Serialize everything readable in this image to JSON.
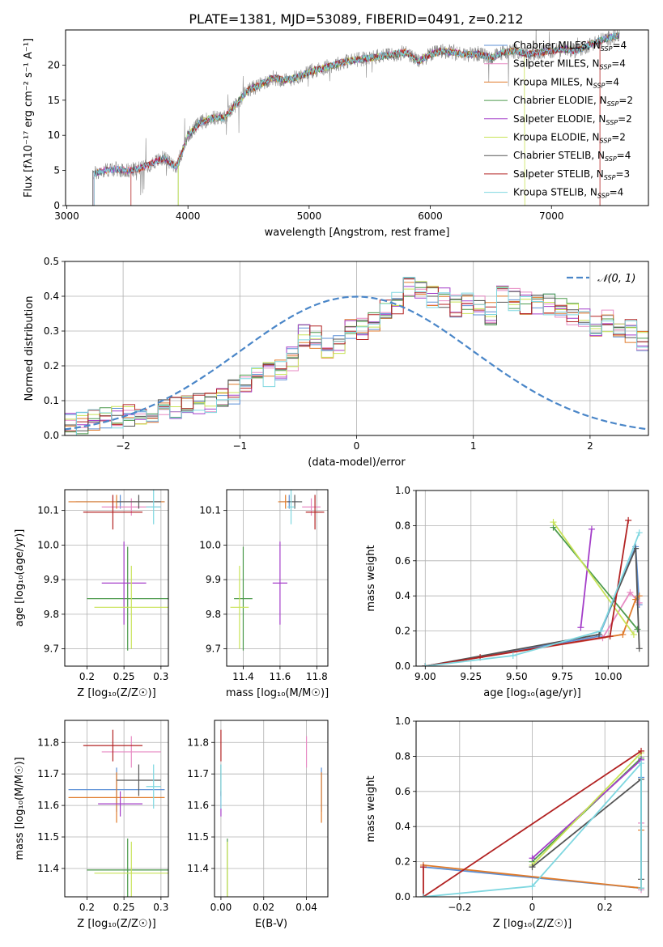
{
  "title": "PLATE=1381, MJD=53089, FIBERID=0491, z=0.212",
  "colors": {
    "chabrier_miles": "#5b8fd6",
    "salpeter_miles": "#e78ac3",
    "kroupa_miles": "#e07b2b",
    "chabrier_elodie": "#4c9a4c",
    "salpeter_elodie": "#a43ec9",
    "kroupa_elodie": "#c8e356",
    "chabrier_stelib": "#555555",
    "salpeter_stelib": "#b22222",
    "kroupa_stelib": "#7fd7e0",
    "gaussian": "#4a86c8",
    "grid": "#b0b0b0"
  },
  "chart_data": [
    {
      "id": "spectrum",
      "type": "line",
      "xlabel": "wavelength [Angstrom, rest frame]",
      "ylabel": "Flux [fλ10⁻¹⁷ erg cm⁻² s⁻¹ A⁻¹]",
      "xlim": [
        2990,
        7800
      ],
      "ylim": [
        0,
        25
      ],
      "xticks": [
        3000,
        4000,
        5000,
        6000,
        7000
      ],
      "yticks": [
        0,
        5,
        10,
        15,
        20
      ],
      "grid": false,
      "legend_position": "top-right",
      "legend": [
        {
          "label": "Chabrier MILES, N",
          "sub": "SSP",
          "suffix": "=4",
          "color_key": "chabrier_miles"
        },
        {
          "label": "Salpeter MILES, N",
          "sub": "SSP",
          "suffix": "=4",
          "color_key": "salpeter_miles"
        },
        {
          "label": "Kroupa MILES, N",
          "sub": "SSP",
          "suffix": "=4",
          "color_key": "kroupa_miles"
        },
        {
          "label": "Chabrier ELODIE, N",
          "sub": "SSP",
          "suffix": "=2",
          "color_key": "chabrier_elodie"
        },
        {
          "label": "Salpeter ELODIE, N",
          "sub": "SSP",
          "suffix": "=2",
          "color_key": "salpeter_elodie"
        },
        {
          "label": "Kroupa ELODIE, N",
          "sub": "SSP",
          "suffix": "=2",
          "color_key": "kroupa_elodie"
        },
        {
          "label": "Chabrier STELIB, N",
          "sub": "SSP",
          "suffix": "=4",
          "color_key": "chabrier_stelib"
        },
        {
          "label": "Salpeter STELIB, N",
          "sub": "SSP",
          "suffix": "=3",
          "color_key": "salpeter_stelib"
        },
        {
          "label": "Kroupa STELIB, N",
          "sub": "SSP",
          "suffix": "=4",
          "color_key": "kroupa_stelib"
        }
      ],
      "continuum": {
        "x": [
          3220,
          3300,
          3400,
          3500,
          3600,
          3700,
          3800,
          3900,
          3950,
          4000,
          4100,
          4200,
          4300,
          4400,
          4500,
          4600,
          4700,
          4800,
          4900,
          5000,
          5100,
          5200,
          5300,
          5400,
          5500,
          5600,
          5700,
          5800,
          5900,
          6000,
          6100,
          6200,
          6300,
          6400,
          6500,
          6600,
          6700,
          6800,
          6900,
          7000,
          7100,
          7200,
          7300,
          7400,
          7550
        ],
        "y": [
          4.5,
          5.0,
          5.2,
          5.0,
          5.2,
          6.0,
          6.8,
          5.5,
          7.5,
          10.0,
          11.8,
          12.5,
          12.5,
          14.5,
          16.5,
          17.2,
          18.2,
          17.8,
          18.3,
          19.0,
          19.5,
          20.0,
          20.5,
          20.8,
          21.0,
          21.3,
          21.5,
          21.8,
          20.5,
          21.5,
          22.0,
          21.8,
          21.5,
          21.6,
          21.0,
          21.8,
          22.0,
          21.5,
          21.8,
          22.0,
          22.3,
          22.0,
          22.8,
          23.5,
          24.2
        ]
      },
      "model_onsets": [
        {
          "color_key": "chabrier_stelib",
          "x_start": 3215
        },
        {
          "color_key": "salpeter_stelib",
          "x_start": 3530
        },
        {
          "color_key": "kroupa_elodie",
          "x_start": 3920
        },
        {
          "color_key": "chabrier_elodie",
          "x_start": 3920
        }
      ],
      "model_cutoffs": [
        {
          "color_key": "kroupa_elodie",
          "x_end": 6780
        },
        {
          "color_key": "salpeter_stelib",
          "x_end": 7400
        }
      ]
    },
    {
      "id": "residual_histogram",
      "type": "histogram",
      "xlabel": "(data-model)/error",
      "ylabel": "Normed distribution",
      "xlim": [
        -2.5,
        2.5
      ],
      "ylim": [
        0,
        0.5
      ],
      "xticks": [
        -2,
        -1,
        0,
        1,
        2
      ],
      "yticks": [
        0.0,
        0.1,
        0.2,
        0.3,
        0.4,
        0.5
      ],
      "grid": true,
      "legend_position": "top-right",
      "reference_label": "𝒩(0, 1)",
      "bin_start": -2.5,
      "bin_width": 0.1,
      "base_heights": [
        0.03,
        0.035,
        0.04,
        0.045,
        0.05,
        0.055,
        0.06,
        0.065,
        0.07,
        0.08,
        0.09,
        0.095,
        0.1,
        0.11,
        0.125,
        0.14,
        0.16,
        0.175,
        0.19,
        0.22,
        0.29,
        0.28,
        0.25,
        0.26,
        0.3,
        0.31,
        0.33,
        0.36,
        0.38,
        0.42,
        0.41,
        0.4,
        0.4,
        0.37,
        0.38,
        0.37,
        0.35,
        0.4,
        0.39,
        0.38,
        0.37,
        0.38,
        0.36,
        0.35,
        0.33,
        0.32,
        0.33,
        0.3,
        0.3,
        0.27,
        0.28,
        0.26,
        0.24,
        0.22,
        0.2,
        0.17,
        0.15,
        0.14,
        0.12,
        0.11,
        0.09,
        0.1,
        0.085,
        0.08,
        0.075,
        0.07,
        0.065,
        0.06,
        0.055,
        0.05,
        0.045,
        0.04,
        0.035,
        0.03,
        0.03,
        0.03,
        0.025,
        0.02,
        0.02,
        0.02
      ],
      "series_keys": [
        "chabrier_miles",
        "salpeter_miles",
        "kroupa_miles",
        "chabrier_elodie",
        "salpeter_elodie",
        "kroupa_elodie",
        "chabrier_stelib",
        "salpeter_stelib",
        "kroupa_stelib"
      ]
    },
    {
      "id": "age_vs_Z",
      "type": "errorbar",
      "xlabel": "Z [log₁₀(Z/Z☉)]",
      "ylabel": "age  [log₁₀(age/yr)]",
      "xlim": [
        0.17,
        0.31
      ],
      "ylim": [
        9.65,
        10.16
      ],
      "xticks": [
        0.2,
        0.25,
        0.3
      ],
      "yticks": [
        9.7,
        9.8,
        9.9,
        10.0,
        10.1
      ],
      "grid": true,
      "points": [
        {
          "color_key": "chabrier_miles",
          "x": 0.245,
          "xerr": 0.06,
          "y": 10.125,
          "yerr": 0.02
        },
        {
          "color_key": "salpeter_miles",
          "x": 0.26,
          "xerr": 0.04,
          "y": 10.11,
          "yerr": 0.025
        },
        {
          "color_key": "kroupa_miles",
          "x": 0.24,
          "xerr": 0.065,
          "y": 10.125,
          "yerr": 0.02
        },
        {
          "color_key": "chabrier_elodie",
          "x": 0.255,
          "xerr": 0.055,
          "y": 9.845,
          "yerr": 0.15
        },
        {
          "color_key": "salpeter_elodie",
          "x": 0.25,
          "xerr": 0.03,
          "y": 9.89,
          "yerr": 0.12
        },
        {
          "color_key": "kroupa_elodie",
          "x": 0.26,
          "xerr": 0.05,
          "y": 9.82,
          "yerr": 0.12
        },
        {
          "color_key": "chabrier_stelib",
          "x": 0.27,
          "xerr": 0.03,
          "y": 10.125,
          "yerr": 0.02
        },
        {
          "color_key": "salpeter_stelib",
          "x": 0.235,
          "xerr": 0.04,
          "y": 10.095,
          "yerr": 0.05
        },
        {
          "color_key": "kroupa_stelib",
          "x": 0.29,
          "xerr": 0.01,
          "y": 10.11,
          "yerr": 0.05
        }
      ]
    },
    {
      "id": "age_vs_mass",
      "type": "errorbar",
      "xlabel": "mass [log₁₀(M/M☉)]",
      "ylabel": "",
      "xlim": [
        11.31,
        11.86
      ],
      "ylim": [
        9.65,
        10.16
      ],
      "xticks": [
        11.4,
        11.6,
        11.8
      ],
      "yticks": [
        9.7,
        9.8,
        9.9,
        10.0,
        10.1
      ],
      "grid": true,
      "points": [
        {
          "color_key": "chabrier_miles",
          "x": 11.65,
          "xerr": 0.05,
          "y": 10.125,
          "yerr": 0.02
        },
        {
          "color_key": "salpeter_miles",
          "x": 11.77,
          "xerr": 0.05,
          "y": 10.11,
          "yerr": 0.025
        },
        {
          "color_key": "kroupa_miles",
          "x": 11.63,
          "xerr": 0.04,
          "y": 10.125,
          "yerr": 0.02
        },
        {
          "color_key": "chabrier_elodie",
          "x": 11.4,
          "xerr": 0.05,
          "y": 9.845,
          "yerr": 0.15
        },
        {
          "color_key": "salpeter_elodie",
          "x": 11.6,
          "xerr": 0.04,
          "y": 9.89,
          "yerr": 0.12
        },
        {
          "color_key": "kroupa_elodie",
          "x": 11.38,
          "xerr": 0.05,
          "y": 9.82,
          "yerr": 0.12
        },
        {
          "color_key": "chabrier_stelib",
          "x": 11.68,
          "xerr": 0.04,
          "y": 10.125,
          "yerr": 0.02
        },
        {
          "color_key": "salpeter_stelib",
          "x": 11.79,
          "xerr": 0.05,
          "y": 10.095,
          "yerr": 0.05
        },
        {
          "color_key": "kroupa_stelib",
          "x": 11.66,
          "xerr": 0.02,
          "y": 10.11,
          "yerr": 0.05
        }
      ]
    },
    {
      "id": "mass_weight_vs_age",
      "type": "line",
      "xlabel": "age  [log₁₀(age/yr)]",
      "ylabel": "mass weight",
      "xlim": [
        8.95,
        10.22
      ],
      "ylim": [
        0,
        1
      ],
      "xticks": [
        9.0,
        9.25,
        9.5,
        9.75,
        10.0
      ],
      "yticks": [
        0.0,
        0.2,
        0.4,
        0.6,
        0.8,
        1.0
      ],
      "grid": true,
      "series": [
        {
          "color_key": "chabrier_miles",
          "x": [
            9.0,
            9.95,
            10.15,
            10.17
          ],
          "y": [
            0.0,
            0.17,
            0.68,
            0.35
          ]
        },
        {
          "color_key": "salpeter_miles",
          "x": [
            9.0,
            9.97,
            10.12,
            10.17
          ],
          "y": [
            0.0,
            0.16,
            0.42,
            0.36
          ]
        },
        {
          "color_key": "kroupa_miles",
          "x": [
            9.0,
            10.08,
            10.15,
            10.17
          ],
          "y": [
            0.0,
            0.18,
            0.38,
            0.4
          ]
        },
        {
          "color_key": "chabrier_elodie",
          "x": [
            9.7,
            10.16
          ],
          "y": [
            0.79,
            0.21
          ]
        },
        {
          "color_key": "salpeter_elodie",
          "x": [
            9.85,
            9.91
          ],
          "y": [
            0.22,
            0.78
          ]
        },
        {
          "color_key": "kroupa_elodie",
          "x": [
            9.7,
            10.14
          ],
          "y": [
            0.82,
            0.18
          ]
        },
        {
          "color_key": "chabrier_stelib",
          "x": [
            9.0,
            9.95,
            10.15,
            10.17
          ],
          "y": [
            0.0,
            0.18,
            0.67,
            0.1
          ]
        },
        {
          "color_key": "salpeter_stelib",
          "x": [
            9.0,
            9.3,
            10.01,
            10.11
          ],
          "y": [
            0.0,
            0.05,
            0.17,
            0.83
          ]
        },
        {
          "color_key": "kroupa_stelib",
          "x": [
            9.0,
            9.48,
            9.96,
            10.17
          ],
          "y": [
            0.0,
            0.06,
            0.2,
            0.76
          ]
        }
      ]
    },
    {
      "id": "mass_vs_Z",
      "type": "errorbar",
      "xlabel": "Z [log₁₀(Z/Z☉)]",
      "ylabel": "mass [log₁₀(M/M☉)]",
      "xlim": [
        0.17,
        0.31
      ],
      "ylim": [
        11.31,
        11.87
      ],
      "xticks": [
        0.2,
        0.25,
        0.3
      ],
      "yticks": [
        11.4,
        11.5,
        11.6,
        11.7,
        11.8
      ],
      "grid": true,
      "points": [
        {
          "color_key": "chabrier_miles",
          "x": 0.24,
          "xerr": 0.065,
          "y": 11.65,
          "yerr": 0.07
        },
        {
          "color_key": "salpeter_miles",
          "x": 0.26,
          "xerr": 0.04,
          "y": 11.77,
          "yerr": 0.05
        },
        {
          "color_key": "kroupa_miles",
          "x": 0.24,
          "xerr": 0.065,
          "y": 11.625,
          "yerr": 0.08
        },
        {
          "color_key": "chabrier_elodie",
          "x": 0.255,
          "xerr": 0.055,
          "y": 11.395,
          "yerr": 0.1
        },
        {
          "color_key": "salpeter_elodie",
          "x": 0.245,
          "xerr": 0.03,
          "y": 11.605,
          "yerr": 0.04
        },
        {
          "color_key": "kroupa_elodie",
          "x": 0.26,
          "xerr": 0.05,
          "y": 11.385,
          "yerr": 0.1
        },
        {
          "color_key": "chabrier_stelib",
          "x": 0.27,
          "xerr": 0.03,
          "y": 11.68,
          "yerr": 0.05
        },
        {
          "color_key": "salpeter_stelib",
          "x": 0.235,
          "xerr": 0.04,
          "y": 11.79,
          "yerr": 0.05
        },
        {
          "color_key": "kroupa_stelib",
          "x": 0.29,
          "xerr": 0.01,
          "y": 11.66,
          "yerr": 0.07
        }
      ]
    },
    {
      "id": "mass_vs_EBV",
      "type": "errorbar",
      "xlabel": "E(B-V)",
      "ylabel": "",
      "xlim": [
        -0.003,
        0.05
      ],
      "ylim": [
        11.31,
        11.87
      ],
      "xticks": [
        0.0,
        0.02,
        0.04
      ],
      "yticks": [
        11.4,
        11.5,
        11.6,
        11.7,
        11.8
      ],
      "grid": true,
      "points": [
        {
          "color_key": "chabrier_miles",
          "x": 0.047,
          "xerr": 0.0,
          "y": 11.65,
          "yerr": 0.07
        },
        {
          "color_key": "salpeter_miles",
          "x": 0.04,
          "xerr": 0.0,
          "y": 11.77,
          "yerr": 0.05
        },
        {
          "color_key": "kroupa_miles",
          "x": 0.047,
          "xerr": 0.0,
          "y": 11.625,
          "yerr": 0.08
        },
        {
          "color_key": "chabrier_elodie",
          "x": 0.003,
          "xerr": 0.0,
          "y": 11.395,
          "yerr": 0.1
        },
        {
          "color_key": "salpeter_elodie",
          "x": 0.0,
          "xerr": 0.0,
          "y": 11.605,
          "yerr": 0.04
        },
        {
          "color_key": "kroupa_elodie",
          "x": 0.003,
          "xerr": 0.0,
          "y": 11.385,
          "yerr": 0.1
        },
        {
          "color_key": "chabrier_stelib",
          "x": 0.0,
          "xerr": 0.0,
          "y": 11.68,
          "yerr": 0.05
        },
        {
          "color_key": "salpeter_stelib",
          "x": 0.0,
          "xerr": 0.0,
          "y": 11.79,
          "yerr": 0.05
        },
        {
          "color_key": "kroupa_stelib",
          "x": 0.0,
          "xerr": 0.0,
          "y": 11.66,
          "yerr": 0.07
        }
      ]
    },
    {
      "id": "mass_weight_vs_Z",
      "type": "line",
      "xlabel": "Z [log₁₀(Z/Z☉)]",
      "ylabel": "mass weight",
      "xlim": [
        -0.32,
        0.32
      ],
      "ylim": [
        0,
        1
      ],
      "xticks": [
        -0.2,
        0.0,
        0.2
      ],
      "yticks": [
        0.0,
        0.2,
        0.4,
        0.6,
        0.8,
        1.0
      ],
      "grid": true,
      "series": [
        {
          "color_key": "chabrier_miles",
          "x": [
            -0.3,
            0.3,
            0.3
          ],
          "y": [
            0.17,
            0.05,
            0.68
          ]
        },
        {
          "color_key": "salpeter_miles",
          "x": [
            0.3,
            0.3
          ],
          "y": [
            0.04,
            0.42
          ]
        },
        {
          "color_key": "kroupa_miles",
          "x": [
            -0.3,
            0.3,
            0.3
          ],
          "y": [
            0.18,
            0.05,
            0.38
          ]
        },
        {
          "color_key": "chabrier_elodie",
          "x": [
            0.0,
            0.3
          ],
          "y": [
            0.2,
            0.79
          ]
        },
        {
          "color_key": "salpeter_elodie",
          "x": [
            0.0,
            0.3
          ],
          "y": [
            0.22,
            0.78
          ]
        },
        {
          "color_key": "kroupa_elodie",
          "x": [
            0.0,
            0.3
          ],
          "y": [
            0.18,
            0.82
          ]
        },
        {
          "color_key": "chabrier_stelib",
          "x": [
            0.0,
            0.3,
            0.3
          ],
          "y": [
            0.17,
            0.67,
            0.1
          ]
        },
        {
          "color_key": "salpeter_stelib",
          "x": [
            -0.3,
            -0.3,
            0.3
          ],
          "y": [
            0.17,
            0.0,
            0.83
          ]
        },
        {
          "color_key": "kroupa_stelib",
          "x": [
            -0.3,
            0.0,
            0.3,
            0.3
          ],
          "y": [
            0.0,
            0.06,
            0.76,
            0.05
          ]
        }
      ]
    }
  ]
}
